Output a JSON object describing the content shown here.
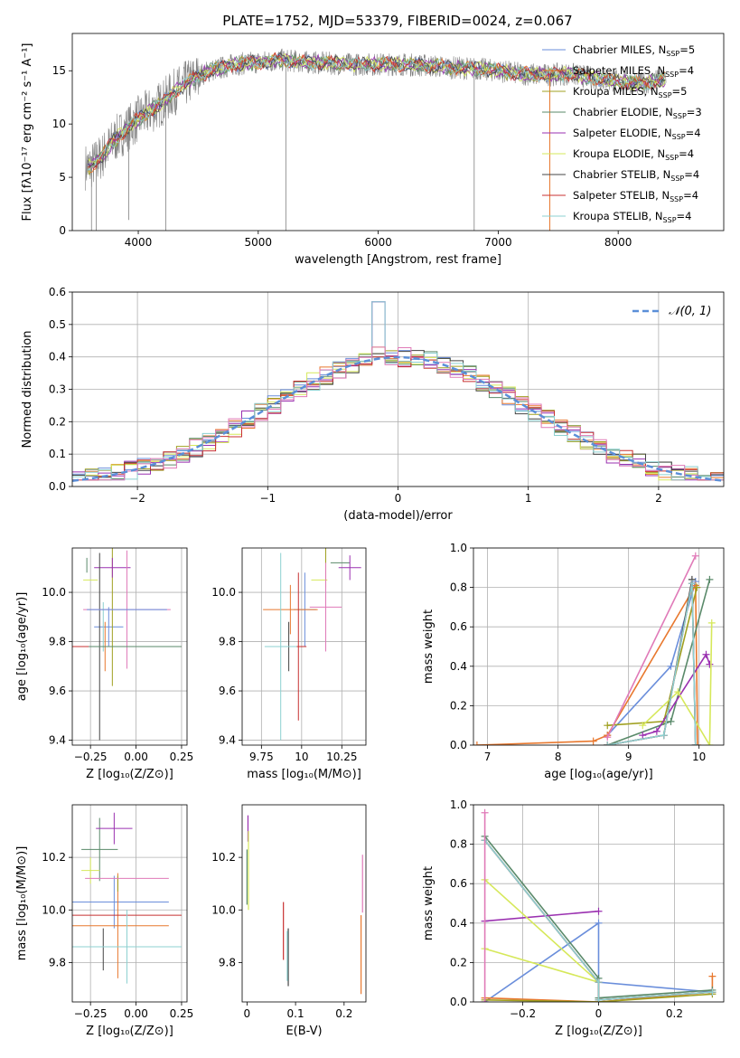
{
  "colors": [
    "#6a8edb",
    "#e8782e",
    "#a0a020",
    "#5a8a6a",
    "#9a30b0",
    "#d6e85a",
    "#444444",
    "#c83030",
    "#8cd0d0"
  ],
  "colors_hist": [
    "#6a8edb",
    "#e8782e",
    "#a0a020",
    "#5a8a6a",
    "#9a30b0",
    "#d6e85a",
    "#444444",
    "#c83030",
    "#8cd0d0",
    "#e07ab8"
  ],
  "colors_extra": {
    "pink": "#e07ab8",
    "gaussian": "#5b8fd8",
    "data_gray": "#808080"
  },
  "chart_data": [
    {
      "id": "spectrum",
      "type": "line",
      "title": "PLATE=1752, MJD=53379, FIBERID=0024, z=0.067",
      "xlabel": "wavelength [Angstrom, rest frame]",
      "ylabel": "Flux [fλ10⁻¹⁷ erg cm⁻² s⁻¹ A⁻¹]",
      "xlim": [
        3450,
        8880
      ],
      "ylim": [
        0,
        18.5
      ],
      "xticks": [
        4000,
        5000,
        6000,
        7000,
        8000
      ],
      "yticks": [
        0,
        5,
        10,
        15
      ],
      "legend_position": "right",
      "series_note": "data shown in gray, models overlaid",
      "continuum_x": [
        3600,
        3700,
        3800,
        3900,
        4000,
        4100,
        4200,
        4300,
        4400,
        4500,
        4600,
        4700,
        4800,
        4900,
        5000,
        5200,
        5400,
        5600,
        5800,
        6000,
        6200,
        6400,
        6600,
        6800,
        7000,
        7200,
        7400,
        7600,
        7800,
        8000,
        8200,
        8400
      ],
      "continuum_y": [
        6.0,
        7.0,
        8.5,
        9.5,
        10.5,
        11.2,
        12.0,
        13.0,
        13.8,
        14.5,
        15.0,
        15.3,
        15.6,
        15.7,
        15.8,
        16.0,
        15.8,
        15.7,
        15.6,
        15.6,
        15.6,
        15.5,
        15.3,
        15.2,
        15.0,
        14.7,
        14.6,
        14.7,
        14.3,
        14.0,
        13.8,
        14.2
      ],
      "legend": [
        "Chabrier MILES, N_SSP=5",
        "Salpeter MILES, N_SSP=4",
        "Kroupa MILES, N_SSP=5",
        "Chabrier ELODIE, N_SSP=3",
        "Salpeter ELODIE, N_SSP=4",
        "Kroupa ELODIE, N_SSP=4",
        "Chabrier STELIB, N_SSP=4",
        "Salpeter STELIB, N_SSP=4",
        "Kroupa STELIB, N_SSP=4"
      ]
    },
    {
      "id": "residuals",
      "type": "histogram",
      "xlabel": "(data-model)/error",
      "ylabel": "Normed distribution",
      "xlim": [
        -2.5,
        2.5
      ],
      "ylim": [
        0,
        0.6
      ],
      "xticks": [
        -2,
        -1,
        0,
        1,
        2
      ],
      "yticks": [
        0.0,
        0.1,
        0.2,
        0.3,
        0.4,
        0.5,
        0.6
      ],
      "grid": true,
      "legend": [
        "𝒩(0, 1)"
      ],
      "legend_position": "top-right",
      "bin_width": 0.1,
      "bin_start": -2.5,
      "peak_values_at_zero": [
        0.57,
        0.43,
        0.41,
        0.4
      ],
      "gaussian": {
        "mean": 0,
        "sigma": 1
      }
    },
    {
      "id": "age_vs_Z",
      "type": "scatter",
      "xlabel": "Z [log₁₀(Z/Z⊙)]",
      "ylabel": "age  [log₁₀(age/yr)]",
      "xlim": [
        -0.35,
        0.28
      ],
      "ylim": [
        9.38,
        10.18
      ],
      "xticks": [
        -0.25,
        0.0,
        0.25
      ],
      "yticks": [
        9.4,
        9.6,
        9.8,
        10.0
      ],
      "grid": true,
      "points": [
        {
          "x": -0.18,
          "y": 9.92,
          "xerr": 0.18,
          "yerr": 0.0
        },
        {
          "x": -0.17,
          "y": 9.93,
          "xerr": 0.12,
          "yerr": 0.0
        },
        {
          "x": -0.04,
          "y": 9.96,
          "xerr": 0.1,
          "yerr": 0.0
        },
        {
          "x": -0.05,
          "y": 9.78,
          "xerr": 0.3,
          "yerr": 0.0
        },
        {
          "x": -0.09,
          "y": 9.94,
          "xerr": 0.2,
          "yerr": 0.0
        },
        {
          "x": -0.2,
          "y": 10.12,
          "xerr": 0.1,
          "yerr": 0.0
        },
        {
          "x": -0.19,
          "y": 10.1,
          "xerr": 0.11,
          "yerr": 0.0
        },
        {
          "x": -0.28,
          "y": 10.05,
          "xerr": 0.02,
          "yerr": 0.0
        },
        {
          "x": -0.05,
          "y": 9.78,
          "xerr": 0.3,
          "yerr": 0.0
        },
        {
          "x": -0.2,
          "y": 10.05,
          "xerr": 0.04,
          "yerr": 0.0
        }
      ]
    },
    {
      "id": "age_vs_mass",
      "type": "scatter",
      "xlabel": "mass [log₁₀(M/M⊙)]",
      "ylabel": "",
      "xlim": [
        9.63,
        10.4
      ],
      "ylim": [
        9.38,
        10.18
      ],
      "xticks": [
        9.75,
        10.0,
        10.25
      ],
      "yticks": [
        9.4,
        9.6,
        9.8,
        10.0
      ],
      "grid": true
    },
    {
      "id": "massweight_vs_age",
      "type": "line",
      "xlabel": "age  [log₁₀(age/yr)]",
      "ylabel": "mass weight",
      "xlim": [
        6.8,
        10.35
      ],
      "ylim": [
        0,
        1.0
      ],
      "xticks": [
        7,
        8,
        9,
        10
      ],
      "yticks": [
        0.0,
        0.2,
        0.4,
        0.6,
        0.8,
        1.0
      ],
      "grid": true,
      "series": [
        {
          "x": [
            8.7,
            9.6,
            9.95
          ],
          "y": [
            0.05,
            0.4,
            0.83
          ]
        },
        {
          "x": [
            6.85,
            8.5,
            8.7,
            9.95,
            9.98
          ],
          "y": [
            0.0,
            0.02,
            0.05,
            0.81,
            0.0
          ]
        },
        {
          "x": [
            8.7,
            9.5,
            9.97
          ],
          "y": [
            0.1,
            0.12,
            0.8
          ]
        },
        {
          "x": [
            8.7,
            9.6,
            10.15
          ],
          "y": [
            0.0,
            0.12,
            0.84
          ]
        },
        {
          "x": [
            9.2,
            9.4,
            10.1,
            10.15
          ],
          "y": [
            0.05,
            0.07,
            0.46,
            0.41
          ]
        },
        {
          "x": [
            9.2,
            9.7,
            10.15,
            10.18
          ],
          "y": [
            0.1,
            0.27,
            0.0,
            0.62
          ]
        },
        {
          "x": [
            8.7,
            9.5,
            9.9,
            9.95
          ],
          "y": [
            0.0,
            0.05,
            0.84,
            0.0
          ]
        },
        {
          "x": [
            8.7,
            9.5,
            9.9,
            9.95
          ],
          "y": [
            0.0,
            0.05,
            0.82,
            0.0
          ]
        },
        {
          "x": [
            8.7,
            9.5,
            9.9,
            9.95
          ],
          "y": [
            0.0,
            0.05,
            0.82,
            0.0
          ]
        },
        {
          "x": [
            8.7,
            9.95
          ],
          "y": [
            0.04,
            0.96
          ]
        }
      ]
    },
    {
      "id": "mass_vs_Z",
      "type": "scatter",
      "xlabel": "Z [log₁₀(Z/Z⊙)]",
      "ylabel": "mass [log₁₀(M/M⊙)]",
      "xlim": [
        -0.35,
        0.28
      ],
      "ylim": [
        9.65,
        10.4
      ],
      "xticks": [
        -0.25,
        0.0,
        0.25
      ],
      "yticks": [
        9.8,
        10.0,
        10.2
      ],
      "grid": true
    },
    {
      "id": "mass_vs_ebv",
      "type": "scatter",
      "xlabel": "E(B-V)",
      "ylabel": "",
      "xlim": [
        -0.01,
        0.245
      ],
      "ylim": [
        9.65,
        10.4
      ],
      "xticks": [
        0.0,
        0.1,
        0.2
      ],
      "yticks": [
        9.8,
        10.0,
        10.2
      ],
      "grid": false
    },
    {
      "id": "massweight_vs_Z",
      "type": "line",
      "xlabel": "Z [log₁₀(Z/Z⊙)]",
      "ylabel": "mass weight",
      "xlim": [
        -0.33,
        0.33
      ],
      "ylim": [
        0,
        1.0
      ],
      "xticks": [
        -0.2,
        0.0,
        0.2
      ],
      "yticks": [
        0.0,
        0.2,
        0.4,
        0.6,
        0.8,
        1.0
      ],
      "grid": true,
      "series": [
        {
          "x": [
            -0.3,
            0.0,
            0.0,
            0.3
          ],
          "y": [
            0.0,
            0.4,
            0.1,
            0.05
          ]
        },
        {
          "x": [
            -0.3,
            0.0,
            0.3,
            0.3
          ],
          "y": [
            0.02,
            0.0,
            0.05,
            0.13
          ]
        },
        {
          "x": [
            -0.3,
            0.0,
            0.3
          ],
          "y": [
            0.01,
            0.0,
            0.04
          ]
        },
        {
          "x": [
            -0.3,
            0.0,
            0.0,
            0.3
          ],
          "y": [
            0.84,
            0.12,
            0.02,
            0.06
          ]
        },
        {
          "x": [
            -0.3,
            0.0
          ],
          "y": [
            0.41,
            0.46
          ]
        },
        {
          "x": [
            -0.3,
            0.0,
            -0.3
          ],
          "y": [
            0.62,
            0.1,
            0.27
          ]
        },
        {
          "x": [
            -0.3,
            0.0,
            0.0,
            0.3
          ],
          "y": [
            0.82,
            0.1,
            0.01,
            0.05
          ]
        },
        {
          "x": [
            -0.3,
            0.0,
            0.0,
            0.3
          ],
          "y": [
            0.82,
            0.1,
            0.01,
            0.05
          ]
        },
        {
          "x": [
            -0.3,
            0.0,
            0.0,
            0.3
          ],
          "y": [
            0.82,
            0.1,
            0.01,
            0.05
          ]
        },
        {
          "x": [
            -0.3,
            -0.3
          ],
          "y": [
            0.96,
            0.0
          ]
        }
      ]
    }
  ]
}
